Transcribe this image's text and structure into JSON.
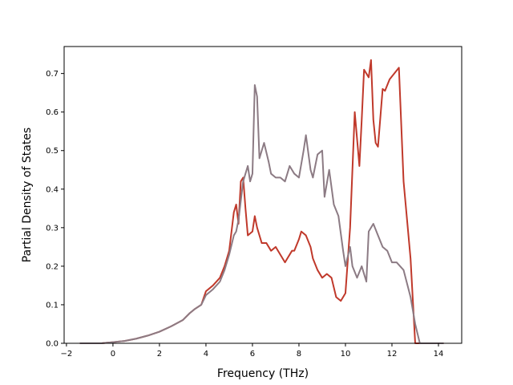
{
  "chart_data": {
    "type": "line",
    "title": "",
    "xlabel": "Frequency (THz)",
    "ylabel": "Partial Density of States",
    "xlim": [
      -2.1,
      15.0
    ],
    "ylim": [
      0.0,
      0.77
    ],
    "xticks": [
      -2,
      0,
      2,
      4,
      6,
      8,
      10,
      12,
      14
    ],
    "yticks": [
      0.0,
      0.1,
      0.2,
      0.3,
      0.4,
      0.5,
      0.6,
      0.7
    ],
    "xtick_labels": [
      "−2",
      "0",
      "2",
      "4",
      "6",
      "8",
      "10",
      "12",
      "14"
    ],
    "ytick_labels": [
      "0.0",
      "0.1",
      "0.2",
      "0.3",
      "0.4",
      "0.5",
      "0.6",
      "0.7"
    ],
    "grid": false,
    "legend": "none",
    "series": [
      {
        "color": "#c0392b",
        "x": [
          -1.4,
          -0.5,
          0.0,
          0.5,
          1.0,
          1.5,
          2.0,
          2.5,
          3.0,
          3.3,
          3.5,
          3.8,
          4.0,
          4.3,
          4.6,
          4.8,
          5.0,
          5.2,
          5.3,
          5.4,
          5.5,
          5.6,
          5.7,
          5.8,
          6.0,
          6.1,
          6.2,
          6.4,
          6.6,
          6.8,
          7.0,
          7.2,
          7.4,
          7.5,
          7.7,
          7.8,
          8.0,
          8.1,
          8.3,
          8.5,
          8.6,
          8.8,
          9.0,
          9.2,
          9.4,
          9.6,
          9.8,
          9.9,
          10.0,
          10.2,
          10.4,
          10.6,
          10.7,
          10.8,
          11.0,
          11.1,
          11.2,
          11.3,
          11.4,
          11.6,
          11.7,
          11.9,
          12.1,
          12.3,
          12.5,
          12.8,
          13.0,
          13.2,
          14.2
        ],
        "y": [
          0.0,
          0.0,
          0.003,
          0.006,
          0.012,
          0.02,
          0.03,
          0.044,
          0.06,
          0.078,
          0.088,
          0.1,
          0.135,
          0.15,
          0.17,
          0.2,
          0.24,
          0.34,
          0.36,
          0.31,
          0.42,
          0.43,
          0.35,
          0.28,
          0.29,
          0.33,
          0.3,
          0.26,
          0.26,
          0.24,
          0.25,
          0.23,
          0.21,
          0.22,
          0.24,
          0.24,
          0.27,
          0.29,
          0.28,
          0.25,
          0.22,
          0.19,
          0.17,
          0.18,
          0.17,
          0.12,
          0.11,
          0.12,
          0.13,
          0.3,
          0.6,
          0.46,
          0.58,
          0.71,
          0.69,
          0.735,
          0.58,
          0.52,
          0.51,
          0.66,
          0.655,
          0.685,
          0.7,
          0.715,
          0.42,
          0.22,
          0.0,
          0.0,
          0.0
        ]
      },
      {
        "color": "#8c7b84",
        "x": [
          -1.4,
          -0.5,
          0.0,
          0.5,
          1.0,
          1.5,
          2.0,
          2.5,
          3.0,
          3.3,
          3.5,
          3.8,
          4.0,
          4.3,
          4.6,
          4.8,
          5.0,
          5.2,
          5.3,
          5.4,
          5.5,
          5.6,
          5.7,
          5.8,
          5.9,
          6.0,
          6.1,
          6.2,
          6.3,
          6.4,
          6.5,
          6.7,
          6.8,
          7.0,
          7.2,
          7.4,
          7.6,
          7.8,
          8.0,
          8.2,
          8.3,
          8.5,
          8.6,
          8.8,
          9.0,
          9.1,
          9.3,
          9.5,
          9.7,
          9.9,
          10.0,
          10.2,
          10.3,
          10.5,
          10.7,
          10.9,
          11.0,
          11.2,
          11.4,
          11.6,
          11.8,
          12.0,
          12.2,
          12.5,
          12.8,
          13.0,
          13.2,
          14.2
        ],
        "y": [
          0.0,
          0.0,
          0.003,
          0.006,
          0.012,
          0.02,
          0.03,
          0.044,
          0.06,
          0.078,
          0.088,
          0.1,
          0.125,
          0.14,
          0.16,
          0.19,
          0.23,
          0.28,
          0.29,
          0.32,
          0.37,
          0.42,
          0.44,
          0.46,
          0.42,
          0.44,
          0.67,
          0.64,
          0.48,
          0.5,
          0.52,
          0.47,
          0.44,
          0.43,
          0.43,
          0.42,
          0.46,
          0.44,
          0.43,
          0.5,
          0.54,
          0.45,
          0.43,
          0.49,
          0.5,
          0.38,
          0.45,
          0.36,
          0.33,
          0.24,
          0.2,
          0.25,
          0.2,
          0.17,
          0.2,
          0.16,
          0.29,
          0.31,
          0.28,
          0.25,
          0.24,
          0.21,
          0.21,
          0.19,
          0.12,
          0.05,
          0.0,
          0.0
        ]
      }
    ]
  }
}
